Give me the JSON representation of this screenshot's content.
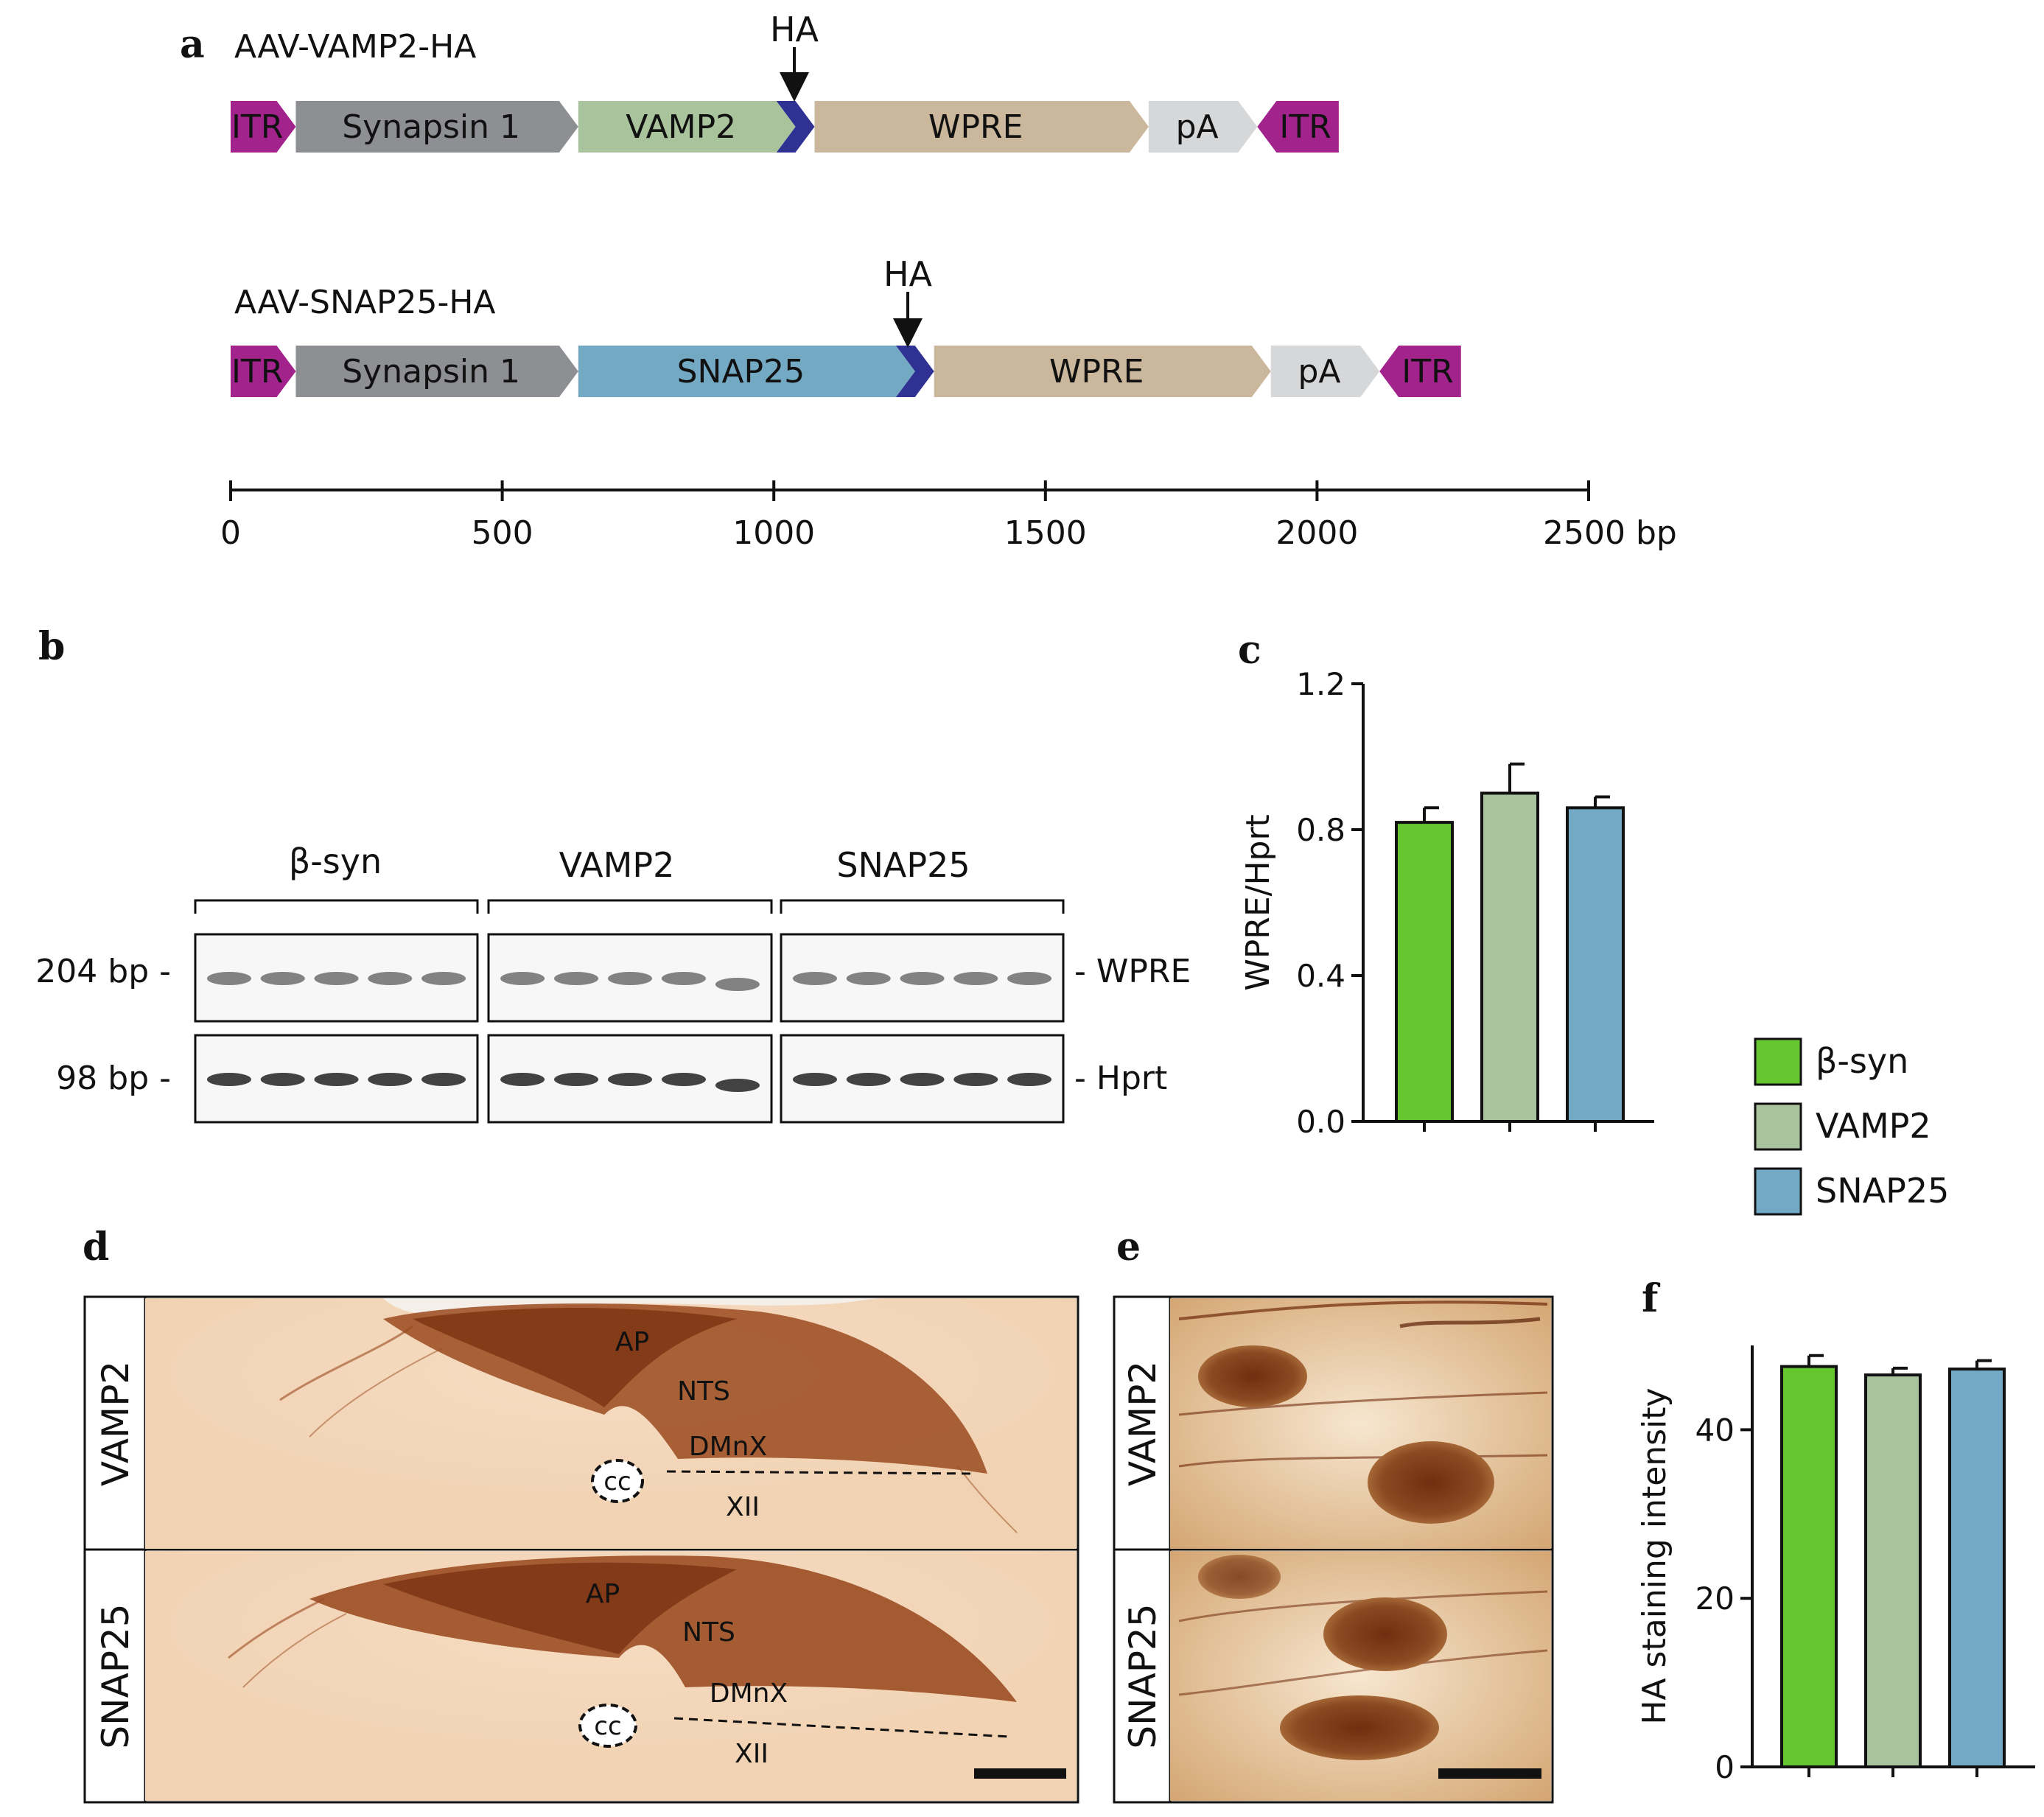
{
  "panels": {
    "a": "a",
    "b": "b",
    "c": "c",
    "d": "d",
    "e": "e",
    "f": "f"
  },
  "construct_vamp2": {
    "name": "AAV-VAMP2-HA",
    "tag_label": "HA",
    "segments": [
      "ITR",
      "Synapsin 1",
      "VAMP2",
      "WPRE",
      "pA",
      "ITR"
    ]
  },
  "construct_snap25": {
    "name": "AAV-SNAP25-HA",
    "tag_label": "HA",
    "segments": [
      "ITR",
      "Synapsin 1",
      "SNAP25",
      "WPRE",
      "pA",
      "ITR"
    ]
  },
  "bp_axis": {
    "ticks": [
      "0",
      "500",
      "1000",
      "1500",
      "2000",
      "2500 bp"
    ],
    "segment_bounds_bp": {
      "vamp2": {
        "itr_l": [
          0,
          120
        ],
        "syn": [
          120,
          640
        ],
        "gene": [
          640,
          1040
        ],
        "ha": [
          1040,
          1075
        ],
        "wpre": [
          1075,
          1690
        ],
        "pa": [
          1690,
          1890
        ],
        "itr_r": [
          1890,
          2040
        ]
      },
      "snap25": {
        "itr_l": [
          0,
          120
        ],
        "syn": [
          120,
          640
        ],
        "gene": [
          640,
          1260
        ],
        "ha": [
          1260,
          1295
        ],
        "wpre": [
          1295,
          1915
        ],
        "pa": [
          1915,
          2115
        ],
        "itr_r": [
          2115,
          2265
        ]
      }
    }
  },
  "colors": {
    "itr": "#a2238c",
    "synapsin": "#8e8f93",
    "vamp2_gene": "#a9c49c",
    "snap25_gene": "#74a9c4",
    "ha": "#2f3193",
    "wpre": "#cab79c",
    "pa": "#d6d7d9",
    "bsyn_bar": "#66c630",
    "vamp2_bar": "#a8c39d",
    "snap25_bar": "#73a9c5",
    "stain_bg": "#f3d8bc",
    "stain_dark": "#8a3a12"
  },
  "gel": {
    "groups": [
      "β-syn",
      "VAMP2",
      "SNAP25"
    ],
    "left_labels": [
      "204 bp -",
      "98 bp -"
    ],
    "right_labels": [
      "- WPRE",
      "- Hprt"
    ]
  },
  "chart_data": [
    {
      "id": "c",
      "type": "bar",
      "categories": [
        "β-syn",
        "VAMP2",
        "SNAP25"
      ],
      "values": [
        0.82,
        0.9,
        0.86
      ],
      "errors": [
        0.04,
        0.08,
        0.03
      ],
      "ylabel": "WPRE/Hprt",
      "ylim": [
        0,
        1.2
      ],
      "yticks": [
        "0.0",
        "0.4",
        "0.8",
        "1.2"
      ],
      "legend": [
        "β-syn",
        "VAMP2",
        "SNAP25"
      ]
    },
    {
      "id": "f",
      "type": "bar",
      "categories": [
        "β-syn",
        "VAMP2",
        "SNAP25"
      ],
      "values": [
        47.5,
        46.5,
        47.2
      ],
      "errors": [
        1.3,
        0.8,
        1.0
      ],
      "ylabel": "HA staining intensity",
      "ylim": [
        0,
        50
      ],
      "yticks": [
        "0",
        "20",
        "40"
      ]
    }
  ],
  "histology_d": {
    "row_labels": [
      "VAMP2",
      "SNAP25"
    ],
    "regions": [
      "AP",
      "NTS",
      "DMnX",
      "cc",
      "XII"
    ]
  },
  "histology_e": {
    "row_labels": [
      "VAMP2",
      "SNAP25"
    ]
  }
}
